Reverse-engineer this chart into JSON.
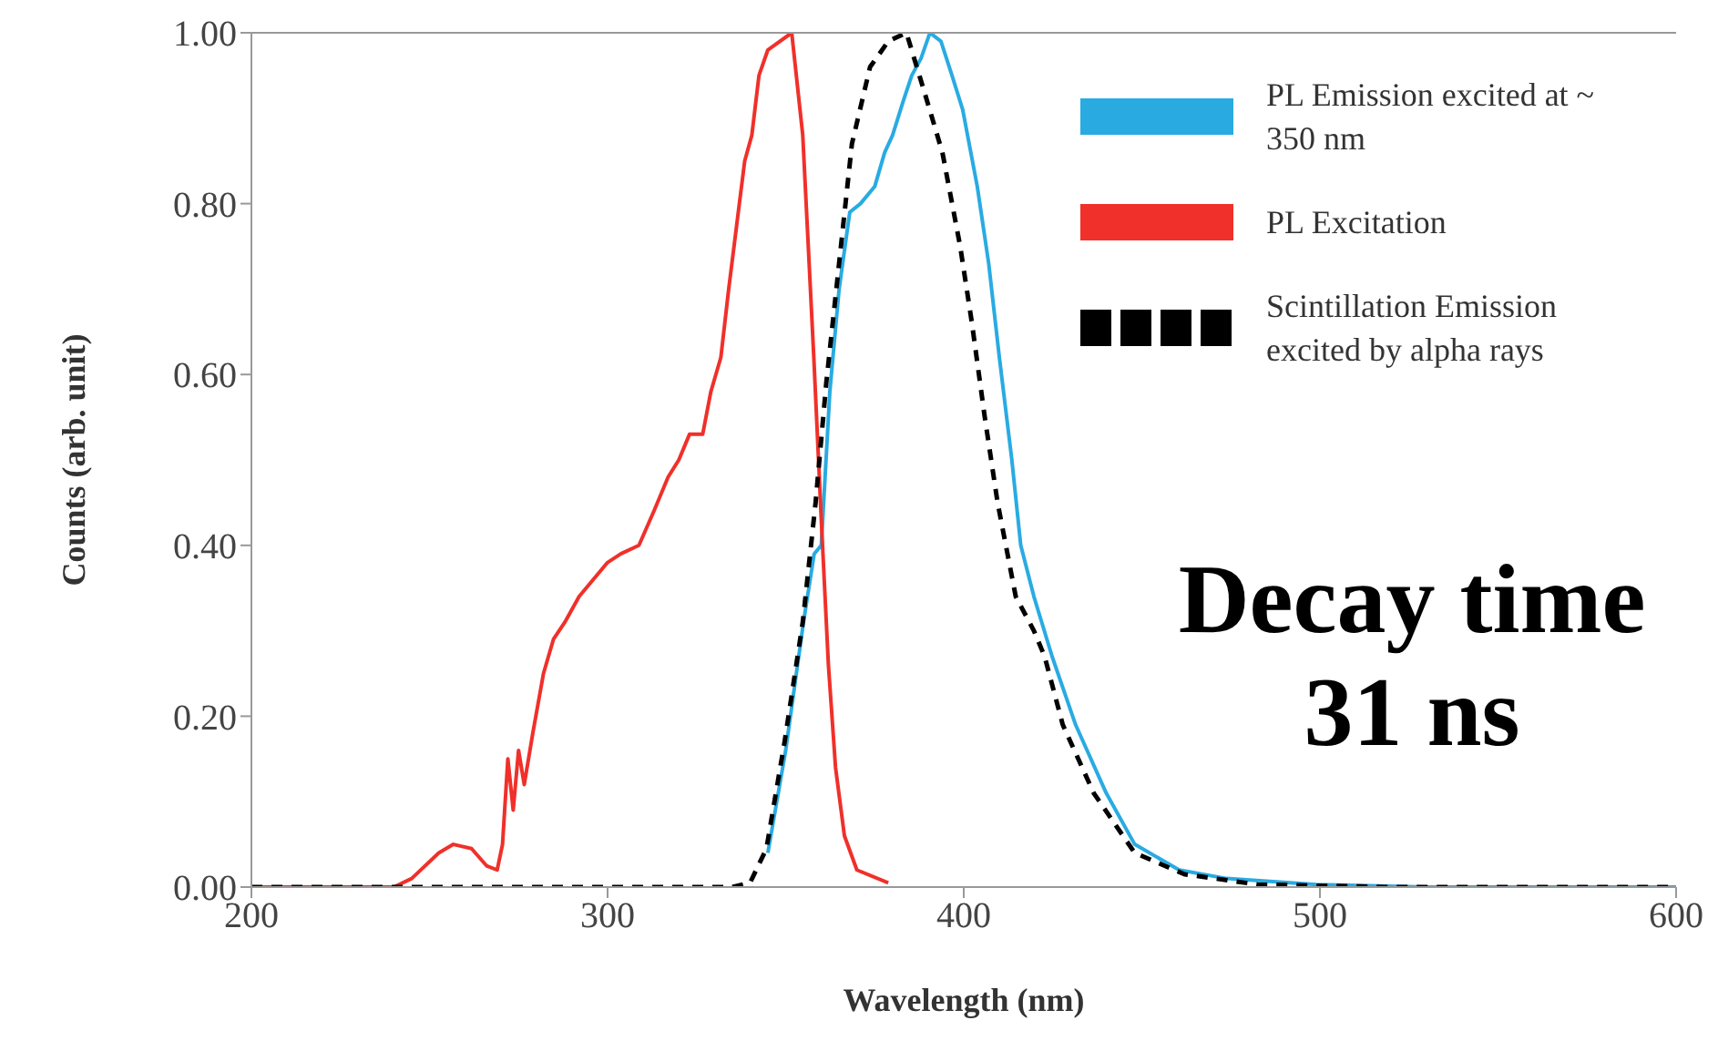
{
  "chart_data": {
    "type": "line",
    "xlabel": "Wavelength (nm)",
    "ylabel": "Counts (arb. unit)",
    "xlim": [
      200,
      600
    ],
    "xticks": [
      200,
      300,
      400,
      500,
      600
    ],
    "ylim": [
      0,
      1
    ],
    "yticks": [
      {
        "value": 0,
        "label": "0.00"
      },
      {
        "value": 0.2,
        "label": "0.20"
      },
      {
        "value": 0.4,
        "label": "0.40"
      },
      {
        "value": 0.6,
        "label": "0.60"
      },
      {
        "value": 0.8,
        "label": "0.80"
      },
      {
        "value": 1,
        "label": "1.00"
      }
    ],
    "legend": "top right",
    "marker": "none",
    "annotations": [
      "Decay time 31 ns"
    ],
    "series": [
      {
        "name": "PL Emission excited at ~ 350 nm",
        "color": "#29abe2",
        "line_style": "solid",
        "x": [
          345,
          350,
          355,
          358,
          360,
          362.4,
          365,
          368,
          371,
          375,
          377.8,
          380,
          383,
          385.4,
          388,
          390.5,
          393.6,
          396.7,
          399.7,
          403.8,
          407,
          410,
          413.5,
          416,
          419.7,
          424.8,
          431.4,
          440,
          448,
          460.5,
          473.8,
          499,
          530,
          600
        ],
        "values": [
          0.04,
          0.16,
          0.31,
          0.39,
          0.4,
          0.58,
          0.7,
          0.79,
          0.8,
          0.82,
          0.86,
          0.88,
          0.92,
          0.95,
          0.97,
          1.0,
          0.99,
          0.95,
          0.91,
          0.82,
          0.73,
          0.62,
          0.5,
          0.4,
          0.34,
          0.27,
          0.19,
          0.11,
          0.05,
          0.02,
          0.01,
          0.003,
          0,
          0
        ]
      },
      {
        "name": "PL Excitation",
        "color": "#f0302a",
        "line_style": "solid",
        "x": [
          200,
          240,
          245,
          252.6,
          256.7,
          261.8,
          266,
          269,
          270.5,
          272,
          273.5,
          275,
          276.6,
          279,
          282,
          284.8,
          288,
          292,
          296,
          300,
          303.7,
          308.8,
          313,
          317,
          320,
          323,
          326.7,
          329,
          331.8,
          334,
          336.4,
          338.5,
          340.5,
          342.5,
          345,
          351.7,
          354.8,
          357.9,
          360,
          362,
          364,
          366.5,
          370,
          378.8
        ],
        "values": [
          0,
          0,
          0.01,
          0.04,
          0.05,
          0.045,
          0.025,
          0.02,
          0.05,
          0.15,
          0.09,
          0.16,
          0.12,
          0.18,
          0.25,
          0.29,
          0.31,
          0.34,
          0.36,
          0.38,
          0.39,
          0.4,
          0.44,
          0.48,
          0.5,
          0.53,
          0.53,
          0.58,
          0.62,
          0.7,
          0.78,
          0.85,
          0.88,
          0.95,
          0.98,
          1.0,
          0.88,
          0.62,
          0.43,
          0.26,
          0.14,
          0.06,
          0.02,
          0.005
        ]
      },
      {
        "name": "Scintillation Emission excited by alpha rays",
        "color": "#000000",
        "line_style": "dashed",
        "x": [
          200,
          335,
          340,
          344.6,
          349.7,
          354.8,
          358.4,
          361.4,
          365,
          368.6,
          373.7,
          378.8,
          383.9,
          389,
          394,
          399,
          402.3,
          405.9,
          409.5,
          414.6,
          419.7,
          422.7,
          427.8,
          436.5,
          448,
          462,
          482.5,
          520,
          600
        ],
        "values": [
          0,
          0,
          0.005,
          0.045,
          0.17,
          0.31,
          0.45,
          0.59,
          0.73,
          0.87,
          0.96,
          0.99,
          1.0,
          0.93,
          0.86,
          0.75,
          0.66,
          0.55,
          0.45,
          0.34,
          0.3,
          0.27,
          0.19,
          0.11,
          0.04,
          0.015,
          0.003,
          0,
          0
        ]
      }
    ]
  }
}
